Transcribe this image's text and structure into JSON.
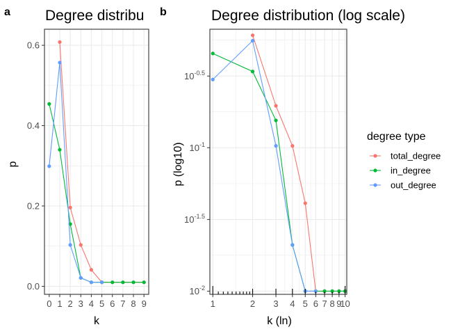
{
  "chart_data": [
    {
      "panel_label": "a",
      "title": "Degree distribu",
      "type": "line",
      "xlabel": "k",
      "ylabel": "p",
      "xlim": [
        -0.45,
        9.45
      ],
      "ylim": [
        -0.02,
        0.64
      ],
      "x_ticks": [
        "0",
        "1",
        "2",
        "3",
        "4",
        "5",
        "6",
        "7",
        "8",
        "9"
      ],
      "y_ticks": [
        "0.0",
        "0.2",
        "0.4",
        "0.6"
      ],
      "grid": true,
      "series": [
        {
          "name": "total_degree",
          "x": [
            1,
            2,
            3,
            4,
            5,
            6,
            7,
            8,
            9
          ],
          "values": [
            0.608,
            0.196,
            0.103,
            0.041,
            0.01,
            0.01,
            0.01,
            0.01,
            0.01
          ]
        },
        {
          "name": "in_degree",
          "x": [
            0,
            1,
            2,
            3,
            4,
            5,
            6,
            7,
            8,
            9
          ],
          "values": [
            0.454,
            0.34,
            0.155,
            0.021,
            0.01,
            0.01,
            0.01,
            0.01,
            0.01,
            0.01
          ]
        },
        {
          "name": "out_degree",
          "x": [
            0,
            1,
            2,
            3,
            4,
            5
          ],
          "values": [
            0.299,
            0.557,
            0.103,
            0.021,
            0.01,
            0.01
          ]
        }
      ]
    },
    {
      "panel_label": "b",
      "title": "Degree distribution (log scale)",
      "type": "line",
      "xlabel": "k (ln)",
      "ylabel": "p (log10)",
      "x_scale": "log",
      "y_scale": "log10",
      "xlim": [
        0.95,
        10.3
      ],
      "ylim": [
        0.0095,
        0.67
      ],
      "x_ticks": [
        "1",
        "2",
        "3",
        "4",
        "5",
        "6",
        "7",
        "8",
        "9",
        "10"
      ],
      "y_ticks": [
        {
          "base": "10",
          "exp": "-2",
          "value": 0.01
        },
        {
          "base": "10",
          "exp": "-1.5",
          "value": 0.0316
        },
        {
          "base": "10",
          "exp": "-1",
          "value": 0.1
        },
        {
          "base": "10",
          "exp": "-0.5",
          "value": 0.316
        }
      ],
      "grid": true,
      "series": [
        {
          "name": "total_degree",
          "x": [
            2,
            3,
            4,
            5,
            6,
            7,
            8,
            9,
            10
          ],
          "values": [
            0.608,
            0.196,
            0.103,
            0.041,
            0.01,
            0.01,
            0.01,
            0.01,
            0.01
          ]
        },
        {
          "name": "in_degree",
          "x": [
            1,
            2,
            3,
            4,
            5,
            6,
            7,
            8,
            9,
            10
          ],
          "values": [
            0.454,
            0.34,
            0.155,
            0.021,
            0.01,
            0.01,
            0.01,
            0.01,
            0.01,
            0.01
          ]
        },
        {
          "name": "out_degree",
          "x": [
            1,
            2,
            3,
            4,
            5,
            6
          ],
          "values": [
            0.299,
            0.557,
            0.103,
            0.021,
            0.01,
            0.01
          ]
        }
      ]
    }
  ],
  "legend": {
    "title": "degree type",
    "placement": "right",
    "items": [
      {
        "name": "total_degree",
        "color": "#F8766D"
      },
      {
        "name": "in_degree",
        "color": "#00BA38"
      },
      {
        "name": "out_degree",
        "color": "#619CFF"
      }
    ]
  }
}
